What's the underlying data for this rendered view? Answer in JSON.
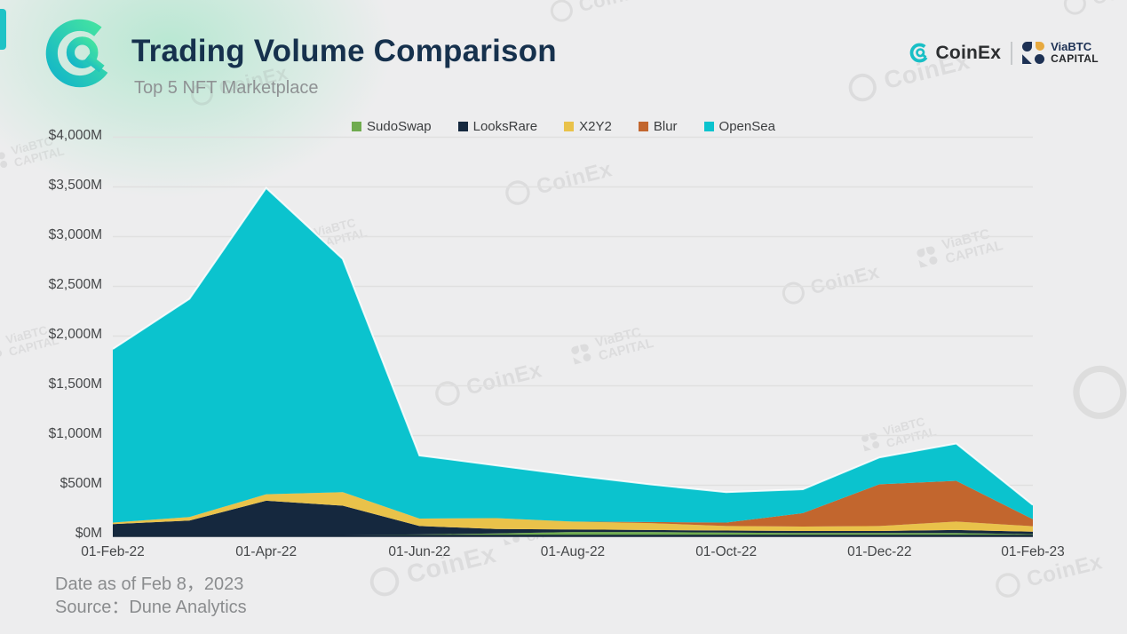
{
  "header": {
    "title": "Trading Volume Comparison",
    "subtitle": "Top 5 NFT Marketplace",
    "brand_right": {
      "coinex_label": "CoinEx",
      "viabtc_line1": "ViaBTC",
      "viabtc_line2": "CAPITAL"
    }
  },
  "watermark": {
    "coinex_text": "CoinEx",
    "viabtc_line1": "ViaBTC",
    "viabtc_line2": "CAPITAL"
  },
  "footer": {
    "date_line": "Date as of Feb 8，2023",
    "source_line": "Source：Dune Analytics"
  },
  "chart_data": {
    "type": "area",
    "stacked": true,
    "title": "Trading Volume Comparison",
    "subtitle": "Top 5 NFT Marketplace",
    "unit": "$M (monthly trading volume)",
    "x": [
      "01-Feb-22",
      "01-Mar-22",
      "01-Apr-22",
      "01-May-22",
      "01-Jun-22",
      "01-Jul-22",
      "01-Aug-22",
      "01-Sep-22",
      "01-Oct-22",
      "01-Nov-22",
      "01-Dec-22",
      "01-Jan-23",
      "01-Feb-23"
    ],
    "x_tick_labels": [
      "01-Feb-22",
      "01-Apr-22",
      "01-Jun-22",
      "01-Aug-22",
      "01-Oct-22",
      "01-Dec-22",
      "01-Feb-23"
    ],
    "y_tick_labels": [
      "$0M",
      "$500M",
      "$1,000M",
      "$1,500M",
      "$2,000M",
      "$2,500M",
      "$3,000M",
      "$3,500M",
      "$4,000M"
    ],
    "ylim": [
      0,
      4000
    ],
    "grid": "horizontal",
    "legend_position": "top-center",
    "series": [
      {
        "name": "SudoSwap",
        "color": "#6fab4f",
        "values": [
          0,
          0,
          0,
          0,
          5,
          15,
          30,
          30,
          25,
          20,
          20,
          20,
          8
        ]
      },
      {
        "name": "LooksRare",
        "color": "#15283e",
        "values": [
          110,
          145,
          345,
          295,
          85,
          45,
          25,
          20,
          20,
          20,
          20,
          30,
          25
        ]
      },
      {
        "name": "X2Y2",
        "color": "#e9c24a",
        "values": [
          15,
          35,
          65,
          135,
          75,
          110,
          80,
          70,
          45,
          45,
          50,
          85,
          55
        ]
      },
      {
        "name": "Blur",
        "color": "#c2662e",
        "values": [
          0,
          0,
          0,
          0,
          0,
          0,
          0,
          10,
          35,
          135,
          420,
          410,
          70
        ]
      },
      {
        "name": "OpenSea",
        "color": "#0bc3ce",
        "values": [
          1745,
          2195,
          3080,
          2345,
          635,
          530,
          465,
          380,
          305,
          240,
          270,
          375,
          145
        ]
      }
    ],
    "stack_totals": [
      1870,
      2375,
      3490,
      2775,
      800,
      700,
      600,
      510,
      430,
      460,
      780,
      920,
      303
    ]
  },
  "colors": {
    "background": "#ededee",
    "title": "#16314d",
    "subtitle": "#8f9294",
    "gridline": "#e0e0e0",
    "axis_line": "#16283c",
    "axis_text": "#454749",
    "accent_teal": "#1fc3c6",
    "viabtc_navy": "#1d3154",
    "viabtc_gold": "#e7a93f"
  }
}
